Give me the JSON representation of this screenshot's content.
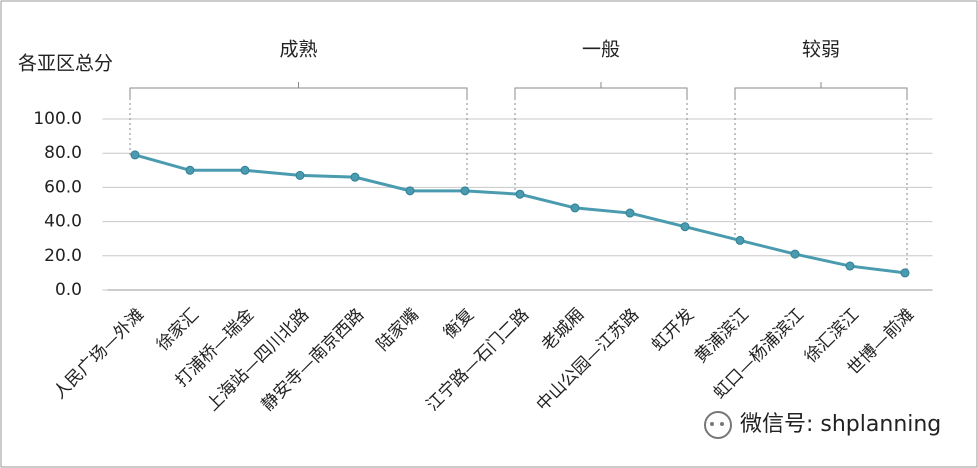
{
  "chart_data": {
    "type": "line",
    "y_label": "各亚区总分",
    "categories": [
      "人民广场—外滩",
      "徐家汇",
      "打浦桥—瑞金",
      "上海站—四川北路",
      "静安寺—南京西路",
      "陆家嘴",
      "衡复",
      "江宁路—石门二路",
      "老城厢",
      "中山公园—江苏路",
      "虹开发",
      "黄浦滨江",
      "虹口—杨浦滨江",
      "徐汇滨江",
      "世博—前滩"
    ],
    "series": [
      {
        "color": "#4a9bb0",
        "values": [
          79,
          70,
          70,
          67,
          66,
          58,
          58,
          56,
          48,
          45,
          37,
          29,
          21,
          14,
          10
        ]
      }
    ],
    "ylim": [
      0,
      100
    ],
    "yticks": [
      {
        "value": 0,
        "label": "0.0"
      },
      {
        "value": 20,
        "label": "20.0"
      },
      {
        "value": 40,
        "label": "40.0"
      },
      {
        "value": 60,
        "label": "60.0"
      },
      {
        "value": 80,
        "label": "80.0"
      },
      {
        "value": 100,
        "label": "100.0"
      }
    ],
    "grid": true,
    "groups": [
      {
        "label": "成熟",
        "span": [
          0,
          6
        ]
      },
      {
        "label": "一般",
        "span": [
          7,
          10
        ]
      },
      {
        "label": "较弱",
        "span": [
          11,
          14
        ]
      }
    ],
    "watermark": "微信号: shplanning"
  }
}
